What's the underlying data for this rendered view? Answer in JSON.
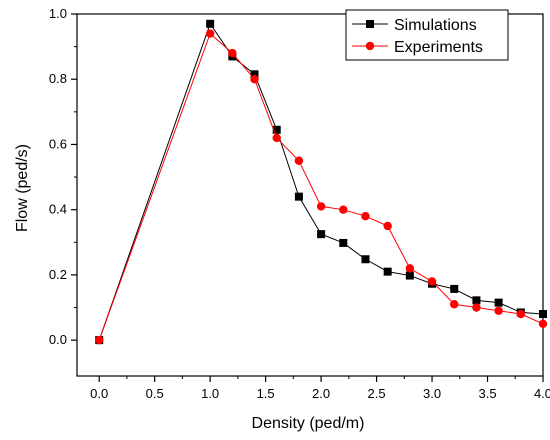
{
  "chart_data": {
    "type": "line",
    "xlabel": "Density (ped/m)",
    "ylabel": "Flow (ped/s)",
    "xlim": [
      -0.2,
      4.0
    ],
    "ylim": [
      -0.11,
      1.0
    ],
    "x_ticks": [
      0.0,
      0.5,
      1.0,
      1.5,
      2.0,
      2.5,
      3.0,
      3.5,
      4.0
    ],
    "x_tick_labels": [
      "0.0",
      "0.5",
      "1.0",
      "1.5",
      "2.0",
      "2.5",
      "3.0",
      "3.5",
      "4.0"
    ],
    "y_ticks": [
      0.0,
      0.2,
      0.4,
      0.6,
      0.8,
      1.0
    ],
    "y_tick_labels": [
      "0.0",
      "0.2",
      "0.4",
      "0.6",
      "0.8",
      "1.0"
    ],
    "grid": false,
    "legend_position": "top-right",
    "series": [
      {
        "name": "Simulations",
        "color": "#000000",
        "marker": "square",
        "x": [
          0.0,
          1.0,
          1.2,
          1.4,
          1.6,
          1.8,
          2.0,
          2.2,
          2.4,
          2.6,
          2.8,
          3.0,
          3.2,
          3.4,
          3.6,
          3.8,
          4.0
        ],
        "y": [
          0.0,
          0.97,
          0.87,
          0.815,
          0.645,
          0.44,
          0.325,
          0.298,
          0.248,
          0.21,
          0.198,
          0.173,
          0.157,
          0.122,
          0.115,
          0.085,
          0.08
        ]
      },
      {
        "name": "Experiments",
        "color": "#ff0000",
        "marker": "circle",
        "x": [
          0.0,
          1.0,
          1.2,
          1.4,
          1.6,
          1.8,
          2.0,
          2.2,
          2.4,
          2.6,
          2.8,
          3.0,
          3.2,
          3.4,
          3.6,
          3.8,
          4.0
        ],
        "y": [
          0.0,
          0.94,
          0.88,
          0.8,
          0.62,
          0.55,
          0.41,
          0.4,
          0.38,
          0.35,
          0.22,
          0.18,
          0.11,
          0.1,
          0.09,
          0.08,
          0.05
        ]
      }
    ]
  }
}
